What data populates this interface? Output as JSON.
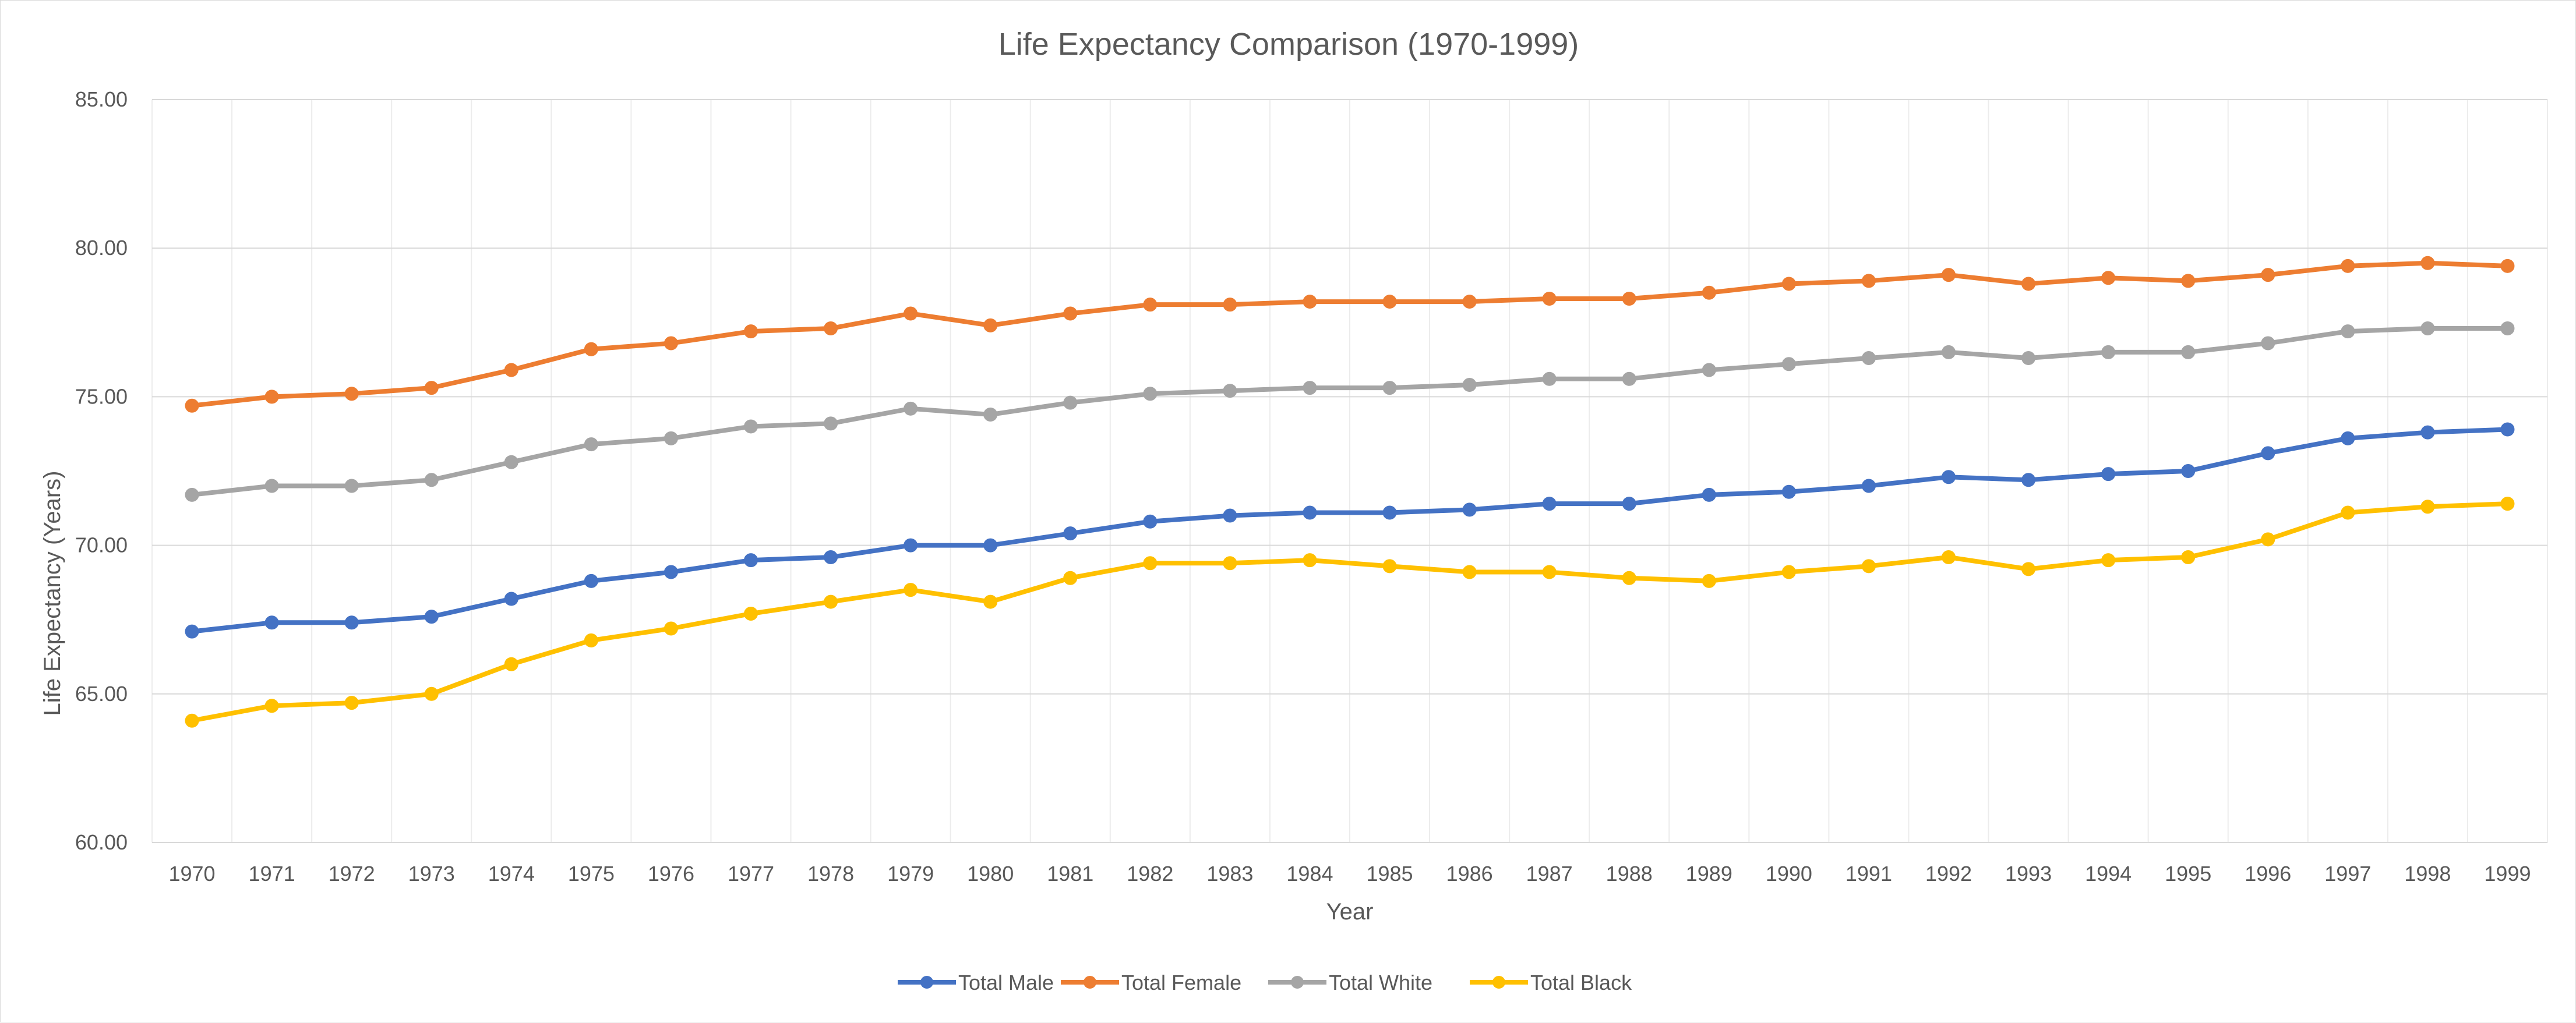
{
  "chart_data": {
    "type": "line",
    "title": "Life Expectancy Comparison (1970-1999)",
    "xlabel": "Year",
    "ylabel": "Life Expectancy (Years)",
    "ylim": [
      60,
      85
    ],
    "y_ticks": [
      "60.00",
      "65.00",
      "70.00",
      "75.00",
      "80.00",
      "85.00"
    ],
    "y_tick_values": [
      60,
      65,
      70,
      75,
      80,
      85
    ],
    "categories": [
      "1970",
      "1971",
      "1972",
      "1973",
      "1974",
      "1975",
      "1976",
      "1977",
      "1978",
      "1979",
      "1980",
      "1981",
      "1982",
      "1983",
      "1984",
      "1985",
      "1986",
      "1987",
      "1988",
      "1989",
      "1990",
      "1991",
      "1992",
      "1993",
      "1994",
      "1995",
      "1996",
      "1997",
      "1998",
      "1999"
    ],
    "grid": true,
    "legend_position": "bottom",
    "series": [
      {
        "name": "Total Male",
        "color": "#4472C4",
        "values": [
          67.1,
          67.4,
          67.4,
          67.6,
          68.2,
          68.8,
          69.1,
          69.5,
          69.6,
          70.0,
          70.0,
          70.4,
          70.8,
          71.0,
          71.1,
          71.1,
          71.2,
          71.4,
          71.4,
          71.7,
          71.8,
          72.0,
          72.3,
          72.2,
          72.4,
          72.5,
          73.1,
          73.6,
          73.8,
          73.9
        ]
      },
      {
        "name": "Total Female",
        "color": "#ED7D31",
        "values": [
          74.7,
          75.0,
          75.1,
          75.3,
          75.9,
          76.6,
          76.8,
          77.2,
          77.3,
          77.8,
          77.4,
          77.8,
          78.1,
          78.1,
          78.2,
          78.2,
          78.2,
          78.3,
          78.3,
          78.5,
          78.8,
          78.9,
          79.1,
          78.8,
          79.0,
          78.9,
          79.1,
          79.4,
          79.5,
          79.4
        ]
      },
      {
        "name": "Total White",
        "color": "#A5A5A5",
        "values": [
          71.7,
          72.0,
          72.0,
          72.2,
          72.8,
          73.4,
          73.6,
          74.0,
          74.1,
          74.6,
          74.4,
          74.8,
          75.1,
          75.2,
          75.3,
          75.3,
          75.4,
          75.6,
          75.6,
          75.9,
          76.1,
          76.3,
          76.5,
          76.3,
          76.5,
          76.5,
          76.8,
          77.2,
          77.3,
          77.3
        ]
      },
      {
        "name": "Total Black",
        "color": "#FFC000",
        "values": [
          64.1,
          64.6,
          64.7,
          65.0,
          66.0,
          66.8,
          67.2,
          67.7,
          68.1,
          68.5,
          68.1,
          68.9,
          69.4,
          69.4,
          69.5,
          69.3,
          69.1,
          69.1,
          68.9,
          68.8,
          69.1,
          69.3,
          69.6,
          69.2,
          69.5,
          69.6,
          70.2,
          71.1,
          71.3,
          71.4
        ]
      }
    ]
  }
}
